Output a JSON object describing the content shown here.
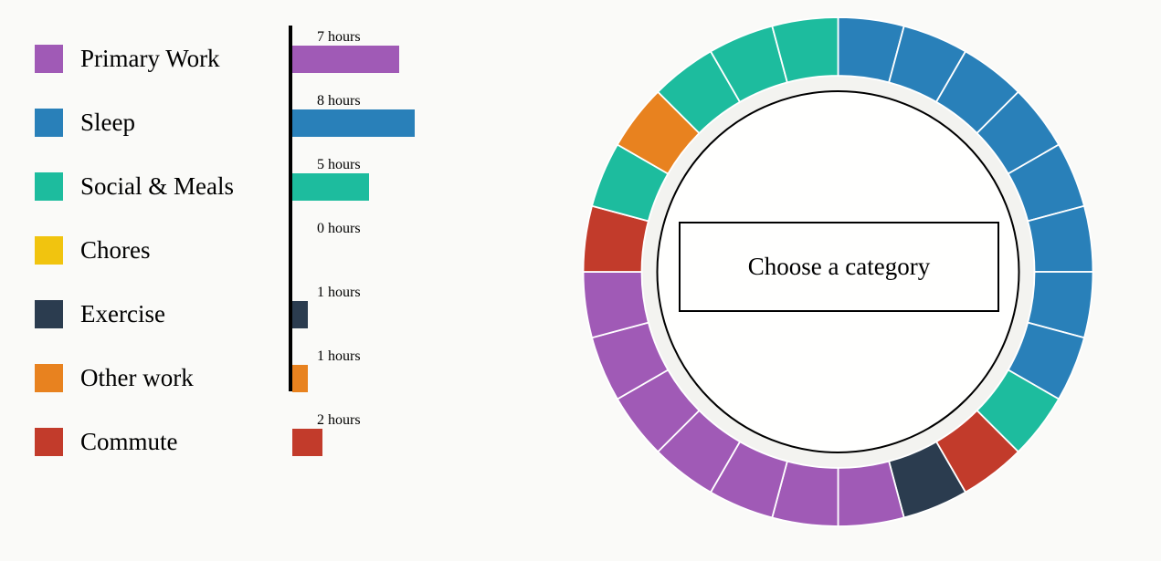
{
  "categories": [
    {
      "label": "Primary Work",
      "color": "#a05ab6",
      "hours": 7,
      "bar_label": "7 hours"
    },
    {
      "label": "Sleep",
      "color": "#2980b9",
      "hours": 8,
      "bar_label": "8 hours"
    },
    {
      "label": "Social & Meals",
      "color": "#1dbc9e",
      "hours": 5,
      "bar_label": "5 hours"
    },
    {
      "label": "Chores",
      "color": "#f1c40f",
      "hours": 0,
      "bar_label": "0 hours"
    },
    {
      "label": "Exercise",
      "color": "#2b3c4f",
      "hours": 1,
      "bar_label": "1 hours"
    },
    {
      "label": "Other work",
      "color": "#e8821f",
      "hours": 1,
      "bar_label": "1 hours"
    },
    {
      "label": "Commute",
      "color": "#c23b2b",
      "hours": 2,
      "bar_label": "2 hours"
    }
  ],
  "donut": {
    "center_label": "Choose a category",
    "hours": [
      "Sleep",
      "Sleep",
      "Sleep",
      "Sleep",
      "Sleep",
      "Sleep",
      "Sleep",
      "Sleep",
      "Social & Meals",
      "Commute",
      "Exercise",
      "Primary Work",
      "Primary Work",
      "Primary Work",
      "Primary Work",
      "Primary Work",
      "Primary Work",
      "Primary Work",
      "Commute",
      "Social & Meals",
      "Other work",
      "Social & Meals",
      "Social & Meals",
      "Social & Meals"
    ]
  },
  "colors": {
    "background": "#fafaf8",
    "axis": "#000000",
    "donut_gap_ring": "#f3f3f0",
    "donut_inner_circle": "#fffffe",
    "donut_inner_stroke": "#000000"
  },
  "chart_data": [
    {
      "type": "bar",
      "orientation": "horizontal",
      "categories": [
        "Primary Work",
        "Sleep",
        "Social & Meals",
        "Chores",
        "Exercise",
        "Other work",
        "Commute"
      ],
      "values": [
        7,
        8,
        5,
        0,
        1,
        1,
        2
      ],
      "bar_labels": [
        "7 hours",
        "8 hours",
        "5 hours",
        "0 hours",
        "1 hours",
        "1 hours",
        "2 hours"
      ],
      "colors": [
        "#a05ab6",
        "#2980b9",
        "#1dbc9e",
        "#f1c40f",
        "#2b3c4f",
        "#e8821f",
        "#c23b2b"
      ],
      "title": "",
      "xlabel": "",
      "ylabel": "",
      "xlim": [
        0,
        8
      ],
      "grid": false,
      "legend_position": "left"
    },
    {
      "type": "pie",
      "subtype": "donut-24-hour-clock",
      "title": "",
      "center_label": "Choose a category",
      "note": "24 equal segments (1 hour each), clockwise starting at midnight (top)",
      "segments_by_hour": [
        "Sleep",
        "Sleep",
        "Sleep",
        "Sleep",
        "Sleep",
        "Sleep",
        "Sleep",
        "Sleep",
        "Social & Meals",
        "Commute",
        "Exercise",
        "Primary Work",
        "Primary Work",
        "Primary Work",
        "Primary Work",
        "Primary Work",
        "Primary Work",
        "Primary Work",
        "Commute",
        "Social & Meals",
        "Other work",
        "Social & Meals",
        "Social & Meals",
        "Social & Meals"
      ],
      "totals_by_category": {
        "Sleep": 8,
        "Primary Work": 7,
        "Social & Meals": 5,
        "Commute": 2,
        "Exercise": 1,
        "Other work": 1,
        "Chores": 0
      }
    }
  ]
}
